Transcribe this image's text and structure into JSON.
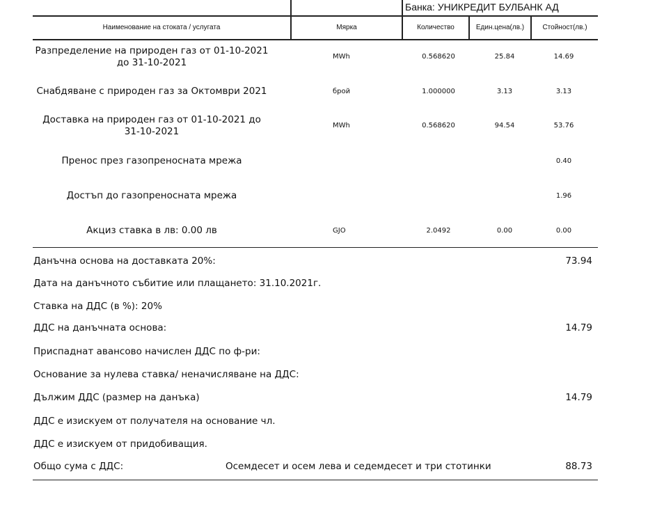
{
  "bank": "Банка: УНИКРЕДИТ БУЛБАНК АД",
  "headers": [
    "Наименование на стоката / услугата",
    "Мярка",
    "Количество",
    "Един.цена(лв.)",
    "Стойност(лв.)"
  ],
  "rows": [
    {
      "name": "Разпределение на природен газ от 01-10-2021 до 31-10-2021",
      "unit": "MWh",
      "qty": "0.568620",
      "price": "25.84",
      "value": "14.69"
    },
    {
      "name": "Снабдяване с природен газ за Октомври 2021",
      "unit": "брой",
      "qty": "1.000000",
      "price": "3.13",
      "value": "3.13"
    },
    {
      "name": "Доставка на природен газ от 01-10-2021 до 31-10-2021",
      "unit": "MWh",
      "qty": "0.568620",
      "price": "94.54",
      "value": "53.76"
    },
    {
      "name": "Пренос през газопреносната мрежа",
      "unit": "",
      "qty": "",
      "price": "",
      "value": "0.40"
    },
    {
      "name": "Достъп до газопреносната мрежа",
      "unit": "",
      "qty": "",
      "price": "",
      "value": "1.96"
    },
    {
      "name": "Акциз ставка в лв: 0.00 лв",
      "unit": "GJO",
      "qty": "2.0492",
      "price": "0.00",
      "value": "0.00"
    }
  ],
  "summary": [
    {
      "label": "Данъчна основа на доставката 20%:",
      "value": "73.94"
    },
    {
      "label": "Дата на данъчното събитие или плащането: 31.10.2021г.",
      "value": ""
    },
    {
      "label": "Ставка на ДДС (в %): 20%",
      "value": ""
    },
    {
      "label": "ДДС на данъчната основа:",
      "value": "14.79"
    },
    {
      "label": "Приспаднат авансово начислен ДДС по ф-ри:",
      "value": ""
    },
    {
      "label": "Основание за нулева ставка/ неначисляване на ДДС:",
      "value": ""
    },
    {
      "label": "Дължим ДДС (размер на данъка)",
      "value": "14.79"
    },
    {
      "label": "ДДС е изискуем от получателя на основание чл.",
      "value": ""
    },
    {
      "label": "ДДС е изискуем от придобиващия.",
      "value": ""
    }
  ],
  "total": {
    "label": "Общо сума с ДДС:",
    "words": "Осемдесет и осем лева и седемдесет и три стотинки",
    "value": "88.73"
  }
}
